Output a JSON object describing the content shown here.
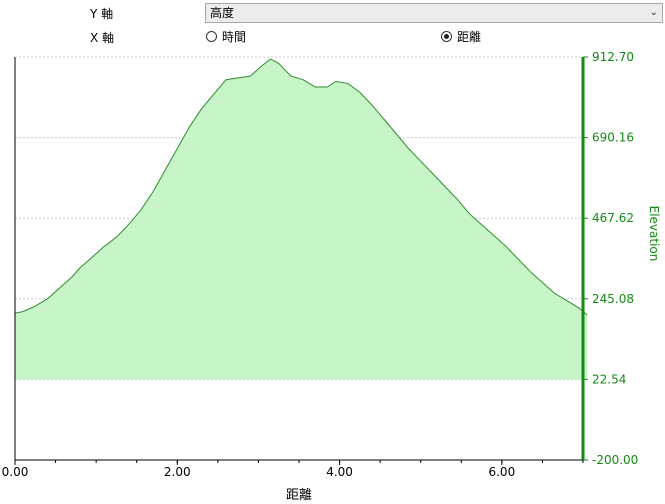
{
  "controls": {
    "y_axis_label": "Y 軸",
    "y_axis_selected": "高度",
    "x_axis_label": "X 軸",
    "x_options": [
      {
        "label": "時間",
        "selected": false
      },
      {
        "label": "距離",
        "selected": true
      }
    ]
  },
  "colors": {
    "fill": "#c8f5c8",
    "line": "#2e8b2e",
    "axis_right": "#138a13",
    "grid": "#cccccc"
  },
  "chart_data": {
    "type": "area",
    "xlabel": "距離",
    "ylabel": "Elevation",
    "xlim": [
      0,
      7.0
    ],
    "ylim": [
      -200.0,
      912.7
    ],
    "x_ticks": [
      "0.00",
      "2.00",
      "4.00",
      "6.00"
    ],
    "y_ticks": [
      "912.70",
      "690.16",
      "467.62",
      "245.08",
      "22.54",
      "-200.00"
    ],
    "baseline": 22.54,
    "grid": true,
    "x": [
      0.0,
      0.1,
      0.25,
      0.4,
      0.55,
      0.7,
      0.8,
      0.95,
      1.1,
      1.25,
      1.4,
      1.55,
      1.7,
      1.85,
      2.0,
      2.15,
      2.3,
      2.45,
      2.6,
      2.75,
      2.9,
      3.05,
      3.15,
      3.25,
      3.4,
      3.55,
      3.7,
      3.85,
      3.95,
      4.1,
      4.25,
      4.4,
      4.55,
      4.7,
      4.85,
      5.0,
      5.15,
      5.3,
      5.45,
      5.6,
      5.75,
      5.9,
      6.05,
      6.2,
      6.35,
      6.5,
      6.65,
      6.8,
      6.95,
      7.05
    ],
    "y": [
      205,
      210,
      225,
      245,
      275,
      305,
      330,
      360,
      390,
      415,
      450,
      490,
      540,
      600,
      660,
      720,
      770,
      810,
      850,
      855,
      860,
      890,
      907,
      895,
      860,
      850,
      830,
      830,
      845,
      840,
      815,
      780,
      740,
      700,
      660,
      625,
      590,
      555,
      520,
      480,
      450,
      420,
      390,
      355,
      320,
      290,
      260,
      240,
      220,
      200
    ]
  }
}
